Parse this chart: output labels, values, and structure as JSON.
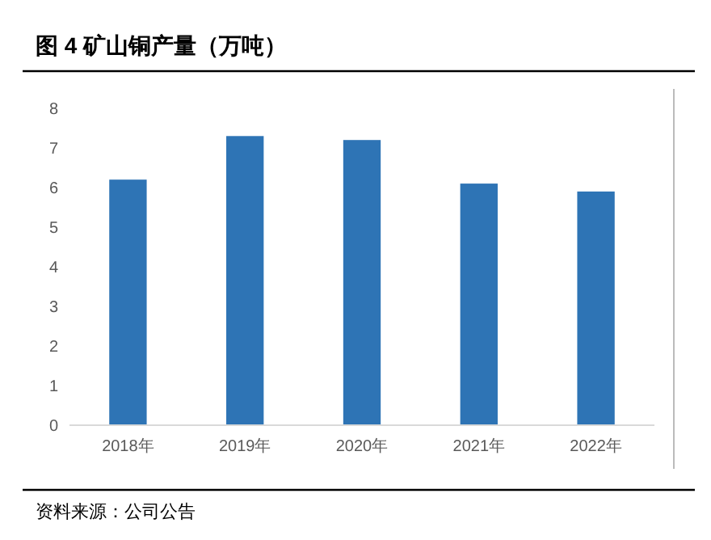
{
  "chart_data": {
    "type": "bar",
    "title": "图 4 矿山铜产量（万吨）",
    "categories": [
      "2018年",
      "2019年",
      "2020年",
      "2021年",
      "2022年"
    ],
    "values": [
      6.2,
      7.3,
      7.2,
      6.1,
      5.9
    ],
    "color": "#2e74b5",
    "ylim": [
      0,
      8
    ],
    "yticks": [
      0,
      1,
      2,
      3,
      4,
      5,
      6,
      7,
      8
    ],
    "grid": false,
    "annotations": [
      "资料来源：公司公告"
    ]
  }
}
